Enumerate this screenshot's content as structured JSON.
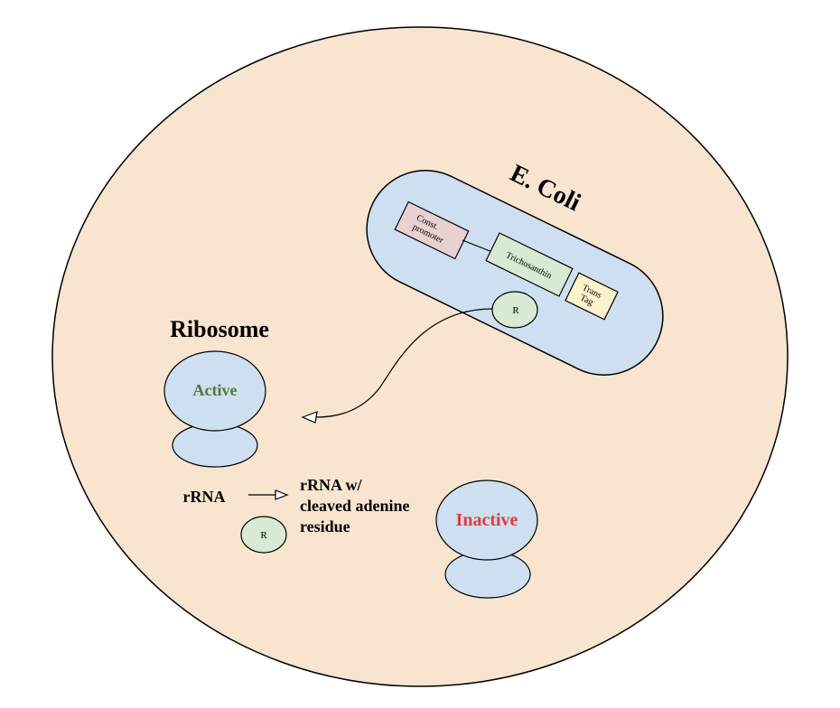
{
  "colors": {
    "cell_fill": "#f9e5cf",
    "ecoli_fill": "#cddff0",
    "ribosome_fill": "#cddff0",
    "promoter_fill": "#ead1d1",
    "gene_fill": "#d8ead3",
    "tag_fill": "#fff2cc",
    "r_fill": "#d8ead3",
    "active_color": "#4e7a33",
    "inactive_color": "#e03c3c",
    "stroke": "#000000"
  },
  "ecoli": {
    "title": "E. Coli",
    "promoter_label_line1": "Const.",
    "promoter_label_line2": "promoter",
    "gene_label": "Trichosanthin",
    "tag_label_line1": "Trans",
    "tag_label_line2": "Tag",
    "protein_label": "R"
  },
  "ribosome": {
    "heading": "Ribosome",
    "active_label": "Active",
    "inactive_label": "Inactive"
  },
  "reaction": {
    "substrate": "rRNA",
    "product_line1": "rRNA w/",
    "product_line2": "cleaved adenine",
    "product_line3": "residue",
    "enzyme_label": "R"
  }
}
